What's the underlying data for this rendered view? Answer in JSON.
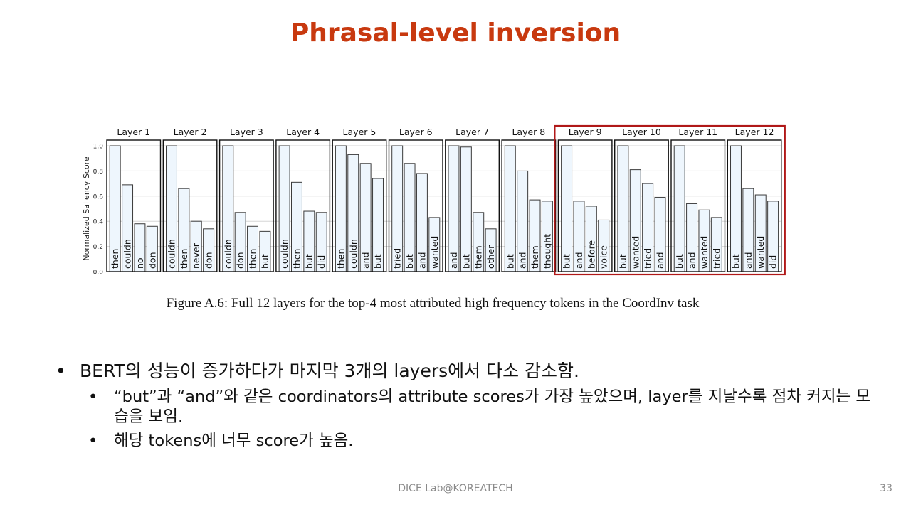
{
  "slide": {
    "title": "Phrasal-level inversion",
    "caption": "Figure A.6: Full 12 layers for the top-4 most attributed high frequency tokens in the CoordInv task",
    "footer": "DICE Lab@KOREATECH",
    "page_number": "33",
    "bullet_marker": "•",
    "bullets": [
      {
        "text": "BERT의 성능이 증가하다가 마지막 3개의 layers에서 다소 감소함."
      },
      {
        "text": "“but”과 “and”와 같은 coordinators의 attribute scores가 가장 높았으며, layer를 지날수록 점차 커지는 모습을 보임."
      },
      {
        "text": "해당 tokens에 너무 score가 높음."
      }
    ]
  },
  "chart_data": {
    "type": "bar",
    "ylabel": "Normalized Saliency Score",
    "ylim": [
      0,
      1.0
    ],
    "yticks": [
      0.0,
      0.2,
      0.4,
      0.6,
      0.8,
      1.0
    ],
    "ytick_labels": [
      "0.0",
      "0.2",
      "0.4",
      "0.6",
      "0.8",
      "1.0"
    ],
    "grid": true,
    "highlighted_panels": [
      "Layer 9",
      "Layer 10",
      "Layer 11",
      "Layer 12"
    ],
    "colors": {
      "bar_fill": "#eef6fd",
      "bar_edge": "#3a3a3a",
      "highlight": "#b01818",
      "grid": "#d6d6d6"
    },
    "panels": [
      {
        "title": "Layer 1",
        "tokens": [
          "then",
          "couldn",
          "no",
          "don"
        ],
        "values": [
          1.0,
          0.69,
          0.38,
          0.36
        ]
      },
      {
        "title": "Layer 2",
        "tokens": [
          "couldn",
          "then",
          "never",
          "don"
        ],
        "values": [
          1.0,
          0.66,
          0.4,
          0.34
        ]
      },
      {
        "title": "Layer 3",
        "tokens": [
          "couldn",
          "don",
          "then",
          "but"
        ],
        "values": [
          1.0,
          0.47,
          0.36,
          0.32
        ]
      },
      {
        "title": "Layer 4",
        "tokens": [
          "couldn",
          "then",
          "but",
          "did"
        ],
        "values": [
          1.0,
          0.71,
          0.48,
          0.47
        ]
      },
      {
        "title": "Layer 5",
        "tokens": [
          "then",
          "couldn",
          "and",
          "but"
        ],
        "values": [
          1.0,
          0.93,
          0.86,
          0.74
        ]
      },
      {
        "title": "Layer 6",
        "tokens": [
          "tried",
          "but",
          "and",
          "wanted"
        ],
        "values": [
          1.0,
          0.86,
          0.78,
          0.43
        ]
      },
      {
        "title": "Layer 7",
        "tokens": [
          "and",
          "but",
          "them",
          "other"
        ],
        "values": [
          1.0,
          0.99,
          0.47,
          0.34
        ]
      },
      {
        "title": "Layer 8",
        "tokens": [
          "but",
          "and",
          "them",
          "thought"
        ],
        "values": [
          1.0,
          0.8,
          0.57,
          0.56
        ]
      },
      {
        "title": "Layer 9",
        "tokens": [
          "but",
          "and",
          "before",
          "voice"
        ],
        "values": [
          1.0,
          0.56,
          0.52,
          0.41
        ]
      },
      {
        "title": "Layer 10",
        "tokens": [
          "but",
          "wanted",
          "tried",
          "and"
        ],
        "values": [
          1.0,
          0.81,
          0.7,
          0.59
        ]
      },
      {
        "title": "Layer 11",
        "tokens": [
          "but",
          "and",
          "wanted",
          "tried"
        ],
        "values": [
          1.0,
          0.54,
          0.49,
          0.43
        ]
      },
      {
        "title": "Layer 12",
        "tokens": [
          "but",
          "and",
          "wanted",
          "did"
        ],
        "values": [
          1.0,
          0.66,
          0.61,
          0.56
        ]
      }
    ]
  }
}
